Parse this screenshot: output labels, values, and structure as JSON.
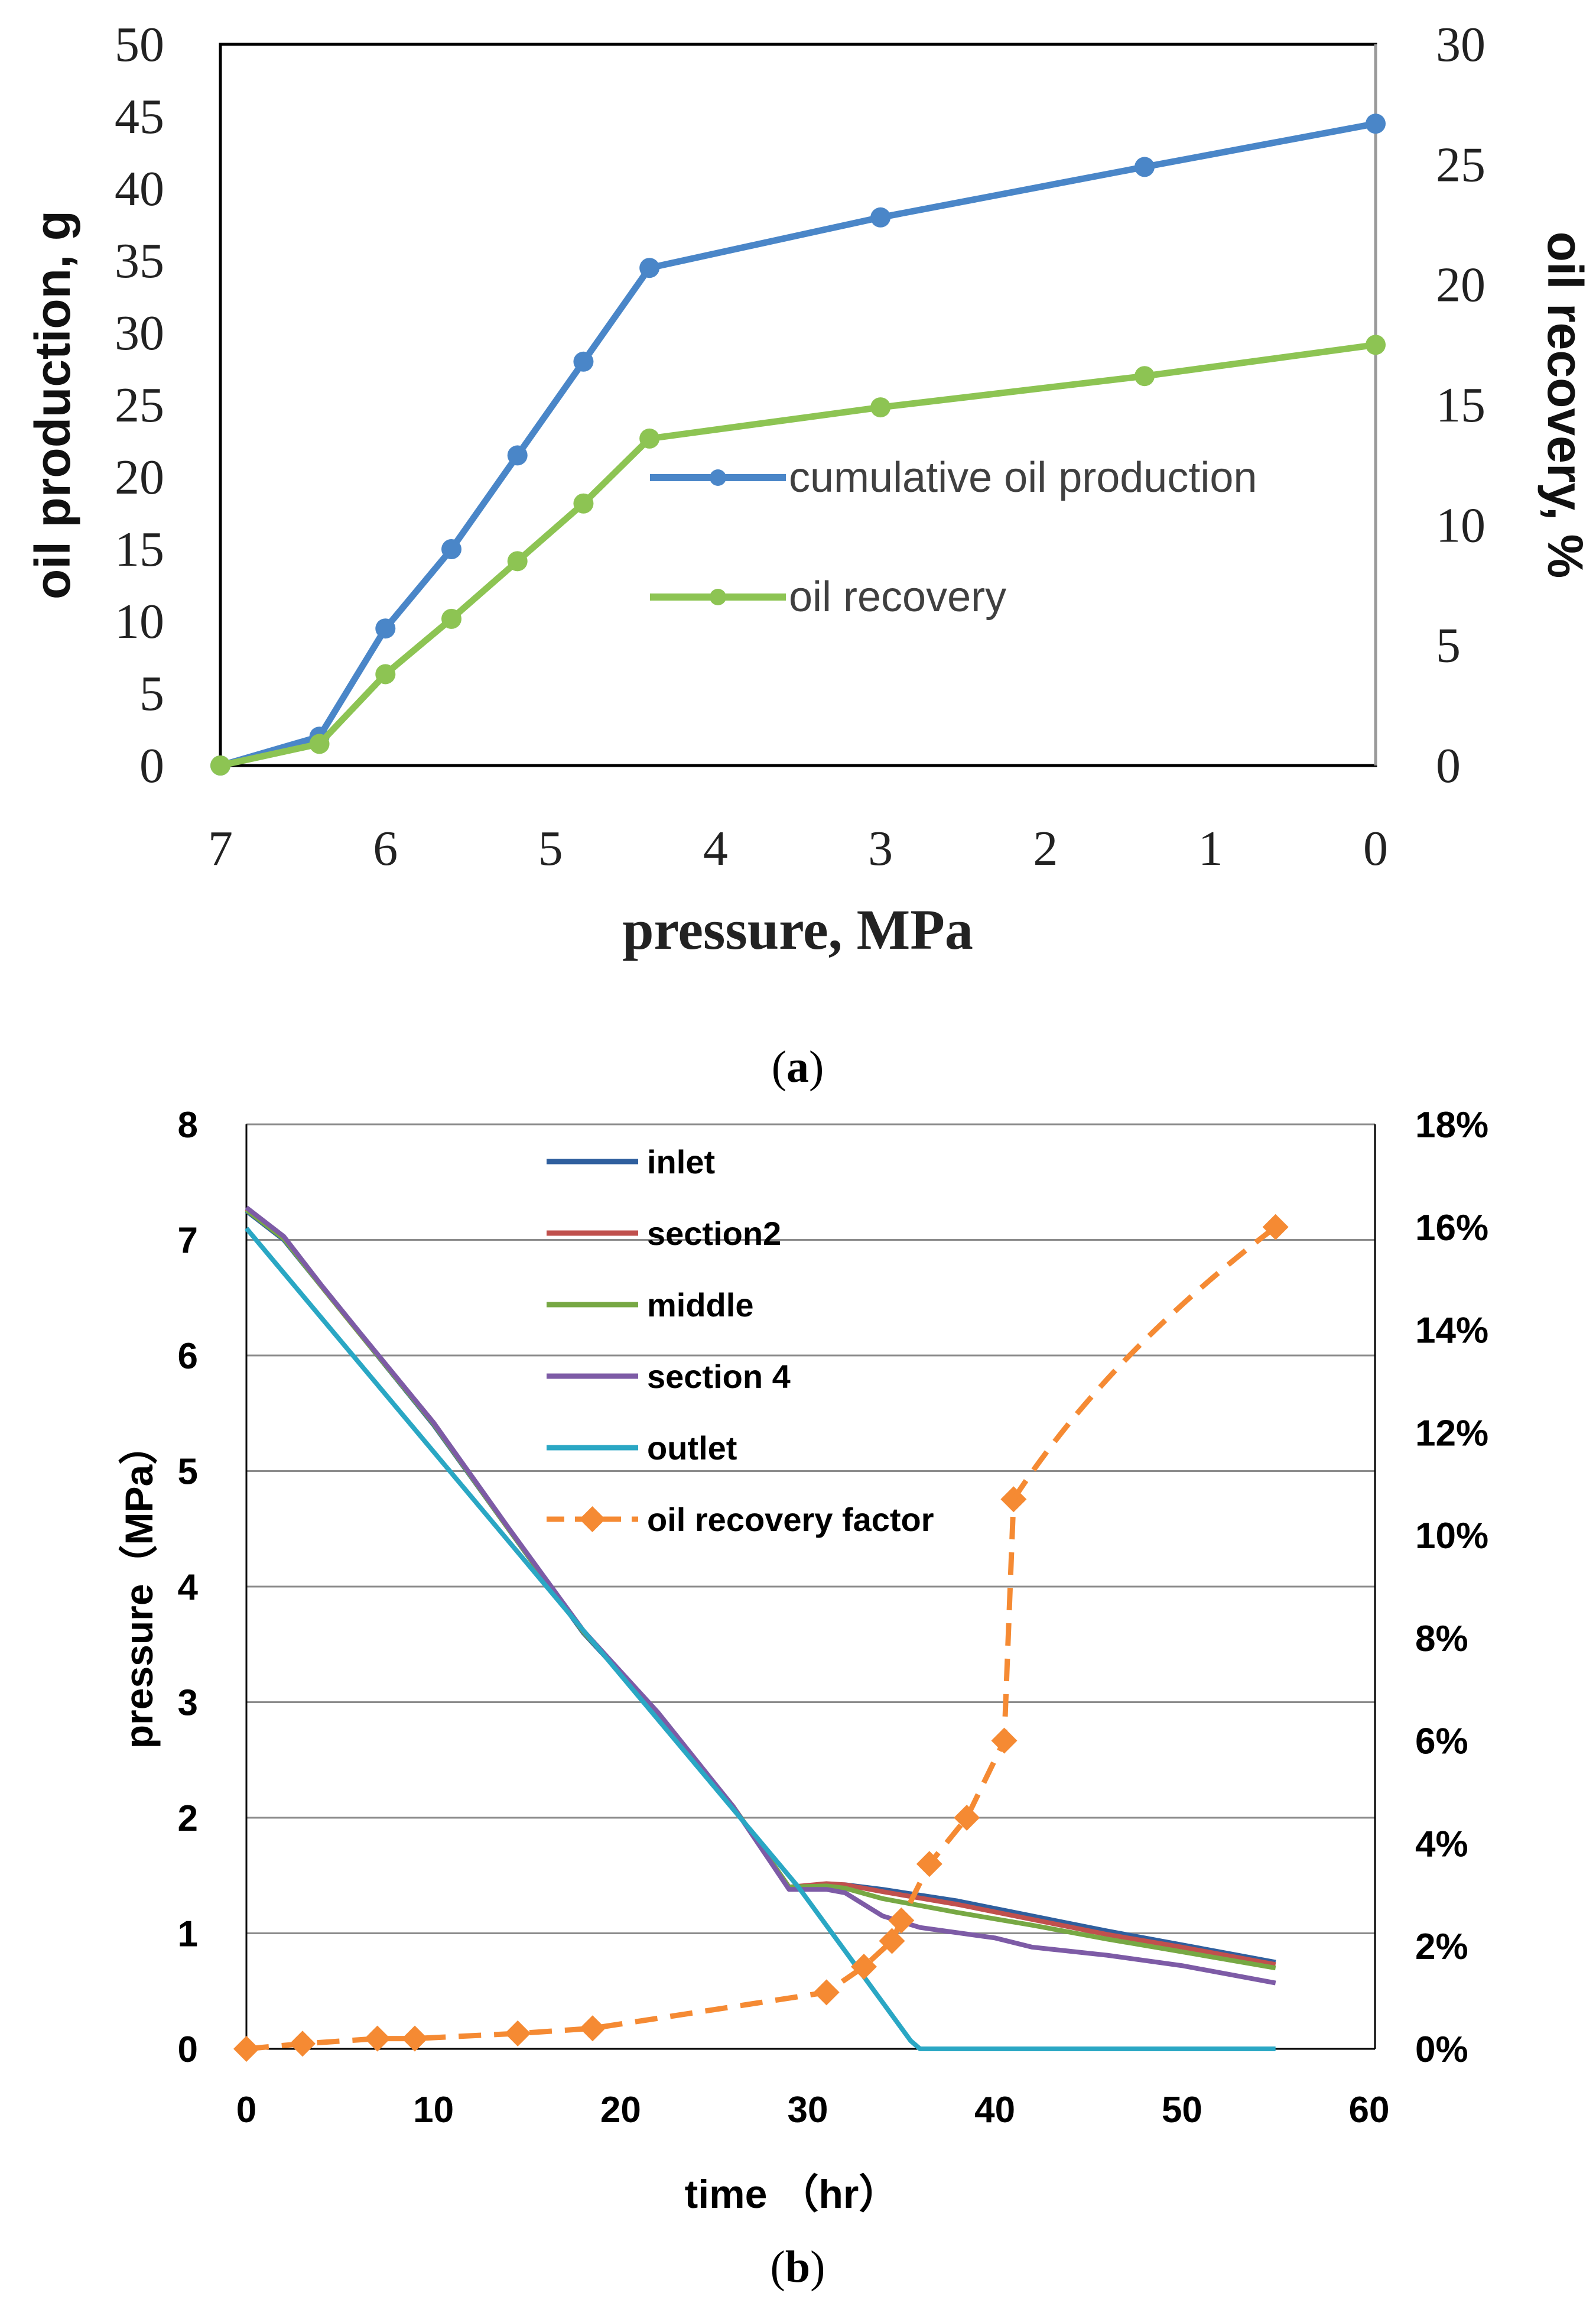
{
  "chart_data": [
    {
      "id": "a",
      "type": "line",
      "caption_open": "(",
      "caption_letter": "a",
      "caption_close": ")",
      "xlabel": "pressure,  MPa",
      "ylabel_left": "oil production, g",
      "ylabel_right": "oil recovery, %",
      "x_reversed": true,
      "xlim": [
        7,
        0
      ],
      "ylim_left": [
        0,
        50
      ],
      "ylim_right": [
        0,
        30
      ],
      "x_ticks": [
        "7",
        "6",
        "5",
        "4",
        "3",
        "2",
        "1",
        "0"
      ],
      "y_left_ticks": [
        "0",
        "5",
        "10",
        "15",
        "20",
        "25",
        "30",
        "35",
        "40",
        "45",
        "50"
      ],
      "y_right_ticks": [
        "0",
        "5",
        "10",
        "15",
        "20",
        "25",
        "30"
      ],
      "grid": false,
      "legend_position": "center-right",
      "series": [
        {
          "name": "cumulative oil production",
          "axis": "left",
          "color": "#4A86C8",
          "x": [
            7.0,
            6.4,
            6.0,
            5.6,
            5.2,
            4.8,
            4.4,
            3.0,
            1.4,
            0.0
          ],
          "y": [
            0.0,
            2.0,
            9.5,
            15.0,
            21.5,
            28.0,
            34.5,
            38.0,
            41.5,
            44.5
          ]
        },
        {
          "name": "oil recovery",
          "axis": "right",
          "color": "#8DC453",
          "x": [
            7.0,
            6.4,
            6.0,
            5.6,
            5.2,
            4.8,
            4.4,
            3.0,
            1.4,
            0.0
          ],
          "y": [
            0.0,
            0.9,
            3.8,
            6.1,
            8.5,
            10.9,
            13.6,
            14.9,
            16.2,
            17.5
          ]
        }
      ]
    },
    {
      "id": "b",
      "type": "line",
      "caption_open": "(",
      "caption_letter": "b",
      "caption_close": ")",
      "xlabel": "time  （hr）",
      "ylabel_left": "pressure（MPa）",
      "xlim": [
        0,
        60
      ],
      "ylim_left": [
        0,
        8
      ],
      "ylim_right": [
        0,
        18
      ],
      "x_ticks": [
        "0",
        "10",
        "20",
        "30",
        "40",
        "50",
        "60"
      ],
      "y_left_ticks": [
        "0",
        "1",
        "2",
        "3",
        "4",
        "5",
        "6",
        "7",
        "8"
      ],
      "y_right_ticks": [
        "0%",
        "2%",
        "4%",
        "6%",
        "8%",
        "10%",
        "12%",
        "14%",
        "16%",
        "18%"
      ],
      "grid": true,
      "legend_position": "top-center",
      "series": [
        {
          "name": "inlet",
          "axis": "left",
          "color": "#2F5F9E",
          "x": [
            0,
            2,
            4,
            6,
            10,
            14,
            18,
            22,
            26,
            29,
            31,
            32,
            34,
            38,
            42,
            46,
            50,
            55
          ],
          "y": [
            7.25,
            7.0,
            6.6,
            6.2,
            5.4,
            4.5,
            3.6,
            2.9,
            2.1,
            1.4,
            1.42,
            1.42,
            1.38,
            1.28,
            1.15,
            1.02,
            0.9,
            0.75
          ]
        },
        {
          "name": "section2",
          "axis": "left",
          "color": "#C0504D",
          "x": [
            0,
            2,
            4,
            6,
            10,
            14,
            18,
            22,
            26,
            29,
            31,
            32,
            34,
            38,
            42,
            46,
            50,
            55
          ],
          "y": [
            7.27,
            7.02,
            6.6,
            6.2,
            5.42,
            4.5,
            3.62,
            2.9,
            2.1,
            1.4,
            1.43,
            1.42,
            1.36,
            1.25,
            1.12,
            0.99,
            0.88,
            0.73
          ]
        },
        {
          "name": "middle",
          "axis": "left",
          "color": "#77A844",
          "x": [
            0,
            2,
            4,
            6,
            10,
            14,
            18,
            22,
            26,
            29,
            31,
            32,
            34,
            38,
            42,
            46,
            50,
            55
          ],
          "y": [
            7.26,
            7.01,
            6.6,
            6.2,
            5.41,
            4.5,
            3.61,
            2.9,
            2.1,
            1.4,
            1.41,
            1.39,
            1.3,
            1.18,
            1.07,
            0.95,
            0.84,
            0.7
          ]
        },
        {
          "name": "section 4",
          "axis": "left",
          "color": "#7D5BA6",
          "x": [
            0,
            2,
            4,
            6,
            10,
            14,
            18,
            22,
            26,
            29,
            31,
            32,
            34,
            36,
            40,
            42,
            46,
            50,
            55
          ],
          "y": [
            7.28,
            7.03,
            6.61,
            6.21,
            5.42,
            4.51,
            3.62,
            2.91,
            2.1,
            1.38,
            1.38,
            1.35,
            1.15,
            1.05,
            0.96,
            0.88,
            0.81,
            0.72,
            0.57
          ]
        },
        {
          "name": "outlet",
          "axis": "left",
          "color": "#2AA7C4",
          "x": [
            0,
            29.5,
            35.5,
            36,
            55
          ],
          "y": [
            7.1,
            1.4,
            0.07,
            0.0,
            0.0
          ]
        },
        {
          "name": "oil recovery factor",
          "axis": "right",
          "color": "#F58A33",
          "dashed": true,
          "markers": "diamond",
          "x": [
            0,
            3,
            7,
            9,
            14.5,
            18.5,
            31,
            33,
            34.5,
            35,
            36.5,
            38.5,
            40.5,
            41
          ],
          "y": [
            0.0,
            0.1,
            0.2,
            0.2,
            0.3,
            0.4,
            1.1,
            1.6,
            2.1,
            2.5,
            3.6,
            4.5,
            6.0,
            10.7
          ]
        }
      ],
      "extra_points": [
        {
          "series": "oil recovery factor",
          "x": 55,
          "y": 16.0
        }
      ]
    }
  ]
}
